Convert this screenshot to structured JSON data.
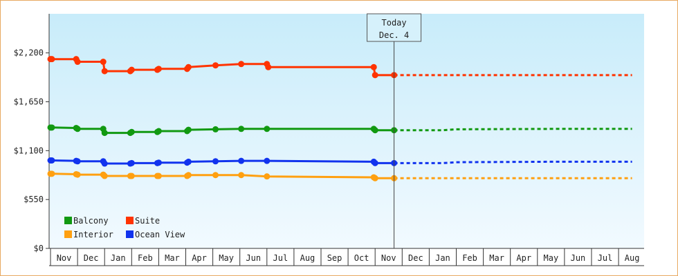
{
  "chart_data": {
    "type": "line",
    "title": "",
    "xlabel": "",
    "ylabel": "",
    "ylim": [
      0,
      2640
    ],
    "y_ticks": [
      0,
      550,
      1100,
      1650,
      2200
    ],
    "y_tick_labels": [
      "$0",
      "$550",
      "$1,100",
      "$1,650",
      "$2,200"
    ],
    "x_months": [
      "Nov",
      "Dec",
      "Jan",
      "Feb",
      "Mar",
      "Apr",
      "May",
      "Jun",
      "Jul",
      "Aug",
      "Sep",
      "Oct",
      "Nov",
      "Dec",
      "Jan",
      "Feb",
      "Mar",
      "Apr",
      "May",
      "Jun",
      "Jul",
      "Aug"
    ],
    "grid": false,
    "legend_position": "bottom-left",
    "today_marker": {
      "label_line1": "Today",
      "label_line2": "Dec. 4",
      "x": 12.7
    },
    "series": [
      {
        "name": "Suite",
        "color": "#ff3300",
        "points": [
          [
            0,
            2130
          ],
          [
            0.05,
            2130
          ],
          [
            0.95,
            2130
          ],
          [
            1,
            2100
          ],
          [
            1.95,
            2100
          ],
          [
            2,
            1995
          ],
          [
            2.95,
            1995
          ],
          [
            3,
            2010
          ],
          [
            3.95,
            2010
          ],
          [
            4,
            2020
          ],
          [
            5.05,
            2020
          ],
          [
            5.1,
            2040
          ],
          [
            6.1,
            2060
          ],
          [
            7.05,
            2075
          ],
          [
            8,
            2075
          ],
          [
            8.05,
            2040
          ],
          [
            11.95,
            2040
          ],
          [
            12,
            1950
          ],
          [
            12.7,
            1950
          ]
        ],
        "forecast": [
          [
            12.7,
            1950
          ],
          [
            21.5,
            1950
          ]
        ]
      },
      {
        "name": "Balcony",
        "color": "#119911",
        "points": [
          [
            0,
            1360
          ],
          [
            0.05,
            1360
          ],
          [
            0.95,
            1355
          ],
          [
            1,
            1345
          ],
          [
            1.95,
            1345
          ],
          [
            2,
            1300
          ],
          [
            2.95,
            1300
          ],
          [
            3,
            1310
          ],
          [
            3.95,
            1310
          ],
          [
            4,
            1320
          ],
          [
            5.05,
            1320
          ],
          [
            5.1,
            1335
          ],
          [
            6.1,
            1340
          ],
          [
            7.05,
            1345
          ],
          [
            8,
            1345
          ],
          [
            11.95,
            1345
          ],
          [
            12,
            1330
          ],
          [
            12.7,
            1330
          ]
        ],
        "forecast": [
          [
            12.7,
            1330
          ],
          [
            14.5,
            1330
          ],
          [
            15,
            1340
          ],
          [
            18.5,
            1345
          ],
          [
            21.5,
            1345
          ]
        ]
      },
      {
        "name": "Ocean View",
        "color": "#1133ee",
        "points": [
          [
            0,
            990
          ],
          [
            0.05,
            990
          ],
          [
            0.95,
            985
          ],
          [
            1,
            980
          ],
          [
            1.95,
            980
          ],
          [
            2,
            955
          ],
          [
            2.95,
            955
          ],
          [
            3,
            960
          ],
          [
            3.95,
            960
          ],
          [
            4,
            965
          ],
          [
            5.05,
            965
          ],
          [
            5.1,
            975
          ],
          [
            6.1,
            980
          ],
          [
            7.05,
            985
          ],
          [
            8,
            985
          ],
          [
            11.95,
            975
          ],
          [
            12,
            960
          ],
          [
            12.7,
            960
          ]
        ],
        "forecast": [
          [
            12.7,
            960
          ],
          [
            14.5,
            960
          ],
          [
            15,
            970
          ],
          [
            18.5,
            975
          ],
          [
            21.5,
            975
          ]
        ]
      },
      {
        "name": "Interior",
        "color": "#ffa010",
        "points": [
          [
            0,
            840
          ],
          [
            0.05,
            840
          ],
          [
            0.95,
            835
          ],
          [
            1,
            830
          ],
          [
            1.95,
            830
          ],
          [
            2,
            815
          ],
          [
            2.95,
            815
          ],
          [
            3,
            815
          ],
          [
            3.95,
            815
          ],
          [
            4,
            815
          ],
          [
            5.05,
            815
          ],
          [
            5.1,
            825
          ],
          [
            6.1,
            825
          ],
          [
            7.05,
            825
          ],
          [
            8,
            810
          ],
          [
            11.95,
            800
          ],
          [
            12,
            790
          ],
          [
            12.7,
            790
          ]
        ],
        "forecast": [
          [
            12.7,
            790
          ],
          [
            21.5,
            790
          ]
        ]
      }
    ],
    "legend_order": [
      "Balcony",
      "Suite",
      "Interior",
      "Ocean View"
    ]
  }
}
